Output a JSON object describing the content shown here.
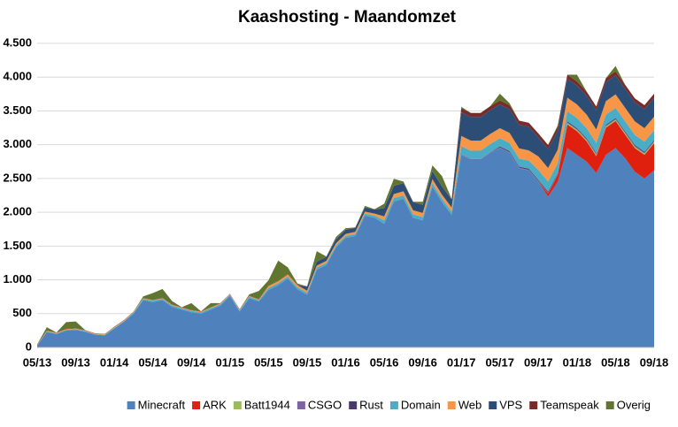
{
  "chart_data": {
    "type": "stacked_area",
    "title": "Kaashosting - Maandomzet",
    "categories": [
      "05/13",
      null,
      null,
      null,
      "09/13",
      null,
      null,
      null,
      "01/14",
      null,
      null,
      null,
      "05/14",
      null,
      null,
      null,
      "09/14",
      null,
      null,
      null,
      "01/15",
      null,
      null,
      null,
      "05/15",
      null,
      null,
      null,
      "09/15",
      null,
      null,
      null,
      "01/16",
      null,
      null,
      null,
      "05/16",
      null,
      null,
      null,
      "09/16",
      null,
      null,
      null,
      "01/17",
      null,
      null,
      null,
      "05/17",
      null,
      null,
      null,
      "09/17",
      null,
      null,
      null,
      "01/18",
      null,
      null,
      null,
      "05/18",
      null,
      null,
      null,
      "09/18"
    ],
    "series": [
      {
        "name": "Minecraft",
        "color": "#4f81bd",
        "values": [
          30,
          230,
          200,
          250,
          260,
          230,
          190,
          180,
          280,
          380,
          500,
          700,
          670,
          700,
          600,
          560,
          520,
          500,
          560,
          620,
          760,
          530,
          730,
          680,
          850,
          920,
          1020,
          860,
          780,
          1150,
          1220,
          1480,
          1620,
          1650,
          1950,
          1920,
          1830,
          2160,
          2200,
          1920,
          1880,
          2380,
          2150,
          1960,
          2850,
          2780,
          2780,
          2880,
          2950,
          2880,
          2650,
          2620,
          2450,
          2230,
          2450,
          2950,
          2850,
          2750,
          2580,
          2850,
          2950,
          2800,
          2600,
          2500,
          2620
        ]
      },
      {
        "name": "ARK",
        "color": "#e0200e",
        "values": [
          0,
          0,
          0,
          0,
          0,
          0,
          0,
          0,
          0,
          0,
          0,
          0,
          0,
          0,
          0,
          0,
          0,
          0,
          0,
          0,
          0,
          0,
          0,
          0,
          0,
          0,
          0,
          0,
          0,
          0,
          0,
          0,
          0,
          0,
          0,
          0,
          0,
          0,
          0,
          0,
          0,
          0,
          0,
          0,
          0,
          0,
          0,
          0,
          0,
          0,
          0,
          0,
          0,
          50,
          100,
          350,
          350,
          300,
          250,
          400,
          400,
          350,
          350,
          350,
          400
        ]
      },
      {
        "name": "Batt1944",
        "color": "#9bbb59",
        "values": [
          0,
          0,
          0,
          0,
          0,
          0,
          0,
          0,
          0,
          0,
          0,
          0,
          0,
          0,
          0,
          0,
          0,
          0,
          0,
          0,
          0,
          0,
          0,
          0,
          0,
          0,
          0,
          0,
          0,
          0,
          0,
          0,
          0,
          0,
          0,
          0,
          0,
          0,
          0,
          0,
          0,
          0,
          0,
          0,
          0,
          0,
          0,
          0,
          0,
          0,
          0,
          0,
          0,
          0,
          0,
          20,
          20,
          20,
          20,
          20,
          20,
          20,
          20,
          20,
          20
        ]
      },
      {
        "name": "CSGO",
        "color": "#8064a2",
        "values": [
          0,
          0,
          0,
          0,
          0,
          0,
          0,
          0,
          0,
          0,
          0,
          0,
          0,
          0,
          0,
          0,
          0,
          0,
          0,
          0,
          0,
          0,
          0,
          0,
          0,
          0,
          0,
          0,
          0,
          0,
          0,
          0,
          0,
          0,
          0,
          0,
          0,
          0,
          0,
          0,
          0,
          0,
          0,
          0,
          10,
          10,
          10,
          10,
          10,
          10,
          10,
          10,
          10,
          10,
          10,
          10,
          10,
          10,
          10,
          10,
          10,
          10,
          10,
          10,
          10
        ]
      },
      {
        "name": "Rust",
        "color": "#4b3a6b",
        "values": [
          0,
          0,
          0,
          0,
          0,
          0,
          0,
          0,
          0,
          0,
          0,
          0,
          0,
          0,
          0,
          0,
          0,
          0,
          0,
          0,
          0,
          0,
          0,
          0,
          0,
          0,
          0,
          0,
          0,
          0,
          0,
          0,
          0,
          0,
          0,
          0,
          0,
          0,
          0,
          0,
          0,
          0,
          0,
          0,
          0,
          0,
          0,
          0,
          15,
          15,
          15,
          15,
          15,
          15,
          15,
          15,
          15,
          15,
          15,
          15,
          15,
          15,
          15,
          15,
          15
        ]
      },
      {
        "name": "Domain",
        "color": "#4bacc6",
        "values": [
          0,
          5,
          5,
          10,
          10,
          10,
          5,
          5,
          10,
          10,
          15,
          20,
          20,
          20,
          20,
          20,
          20,
          20,
          20,
          20,
          20,
          20,
          20,
          20,
          30,
          30,
          30,
          30,
          30,
          30,
          30,
          30,
          30,
          30,
          30,
          30,
          50,
          50,
          50,
          50,
          50,
          50,
          50,
          50,
          120,
          120,
          120,
          120,
          120,
          120,
          120,
          120,
          150,
          150,
          150,
          150,
          150,
          150,
          150,
          150,
          150,
          150,
          150,
          150,
          150
        ]
      },
      {
        "name": "Web",
        "color": "#f79646",
        "values": [
          10,
          10,
          10,
          10,
          10,
          10,
          10,
          10,
          10,
          10,
          10,
          10,
          10,
          10,
          10,
          10,
          10,
          10,
          10,
          10,
          10,
          10,
          10,
          10,
          30,
          30,
          30,
          30,
          30,
          30,
          30,
          30,
          30,
          30,
          30,
          30,
          60,
          60,
          60,
          60,
          60,
          60,
          60,
          60,
          150,
          150,
          150,
          150,
          150,
          150,
          150,
          150,
          200,
          200,
          200,
          200,
          200,
          200,
          200,
          200,
          200,
          200,
          200,
          200,
          200
        ]
      },
      {
        "name": "VPS",
        "color": "#2c4d75",
        "values": [
          0,
          0,
          0,
          0,
          0,
          0,
          0,
          0,
          0,
          0,
          0,
          0,
          0,
          0,
          0,
          0,
          0,
          0,
          0,
          0,
          0,
          0,
          0,
          0,
          0,
          0,
          0,
          0,
          60,
          60,
          60,
          60,
          60,
          60,
          60,
          60,
          120,
          120,
          120,
          120,
          120,
          120,
          120,
          120,
          350,
          350,
          350,
          350,
          350,
          350,
          350,
          350,
          280,
          280,
          280,
          280,
          280,
          280,
          280,
          280,
          280,
          280,
          280,
          280,
          280
        ]
      },
      {
        "name": "Teamspeak",
        "color": "#772c2a",
        "values": [
          5,
          5,
          5,
          5,
          5,
          5,
          5,
          5,
          5,
          5,
          5,
          5,
          5,
          5,
          5,
          5,
          5,
          5,
          5,
          5,
          5,
          5,
          5,
          5,
          5,
          5,
          5,
          5,
          5,
          5,
          5,
          5,
          5,
          5,
          5,
          5,
          5,
          5,
          5,
          5,
          5,
          5,
          5,
          5,
          60,
          60,
          60,
          60,
          60,
          60,
          60,
          60,
          60,
          60,
          60,
          60,
          60,
          60,
          60,
          60,
          60,
          60,
          60,
          60,
          60
        ]
      },
      {
        "name": "Overig",
        "color": "#5f7530",
        "values": [
          0,
          50,
          0,
          100,
          100,
          0,
          0,
          0,
          0,
          0,
          0,
          20,
          100,
          130,
          50,
          0,
          100,
          0,
          60,
          0,
          0,
          0,
          20,
          120,
          80,
          300,
          100,
          20,
          0,
          150,
          0,
          30,
          20,
          0,
          20,
          0,
          60,
          100,
          20,
          0,
          40,
          80,
          150,
          0,
          20,
          0,
          0,
          0,
          100,
          30,
          0,
          0,
          0,
          0,
          20,
          0,
          100,
          0,
          0,
          0,
          80,
          0,
          0,
          0,
          0
        ]
      }
    ],
    "ylim": [
      0,
      4500
    ],
    "yticks": [
      0,
      500,
      {
        "value": 1000,
        "label": "1.000"
      },
      {
        "value": 1500,
        "label": "1.500"
      },
      {
        "value": 2000,
        "label": "2.000"
      },
      {
        "value": 2500,
        "label": "2.500"
      },
      {
        "value": 3000,
        "label": "3.000"
      },
      {
        "value": 3500,
        "label": "3.500"
      },
      {
        "value": 4000,
        "label": "4.000"
      },
      {
        "value": 4500,
        "label": "4.500"
      }
    ],
    "grid": true,
    "legend": "bottom"
  }
}
